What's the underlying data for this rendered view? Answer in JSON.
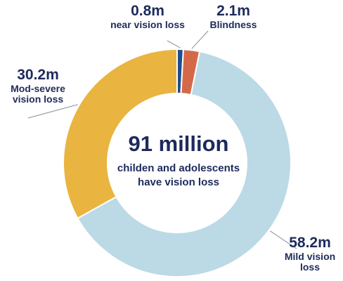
{
  "chart_data": {
    "type": "pie",
    "title": "",
    "center_value": "91 million",
    "center_text": "childen and adolescents have vision loss",
    "slices": [
      {
        "value_label": "0.8m",
        "name": "near vision loss",
        "value": 0.8,
        "color": "#1f4e8c"
      },
      {
        "value_label": "2.1m",
        "name": "Blindness",
        "value": 2.1,
        "color": "#d4694a"
      },
      {
        "value_label": "58.2m",
        "name": "Mild vision loss",
        "value": 58.2,
        "color": "#bcd9e6"
      },
      {
        "value_label": "30.2m",
        "name": "Mod-severe vision loss",
        "value": 30.2,
        "color": "#e9b43f"
      }
    ]
  }
}
